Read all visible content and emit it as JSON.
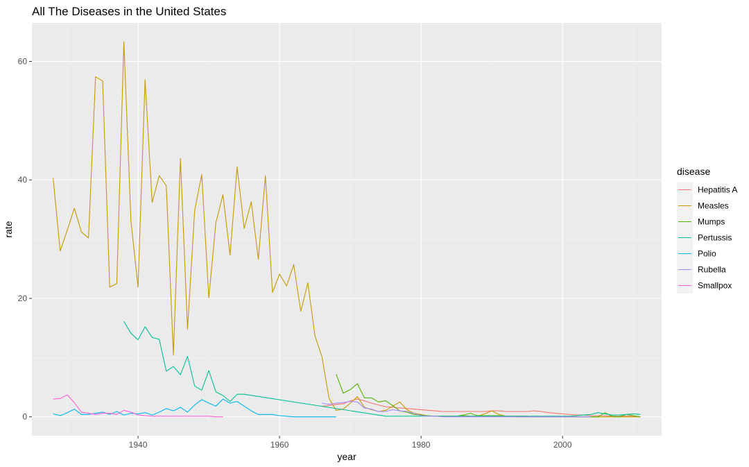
{
  "chart_data": {
    "type": "line",
    "title": "All The Diseases in the United States",
    "xlabel": "year",
    "ylabel": "rate",
    "xlim": [
      1925,
      2014
    ],
    "ylim": [
      -3.2,
      66.5
    ],
    "x_ticks": [
      1940,
      1960,
      1980,
      2000
    ],
    "y_ticks": [
      0,
      20,
      40,
      60
    ],
    "grid": true,
    "legend": {
      "title": "disease",
      "position": "right"
    },
    "series": [
      {
        "name": "Hepatitis A",
        "color": "#F8766D",
        "x": [
          1966,
          1967,
          1968,
          1969,
          1970,
          1971,
          1972,
          1973,
          1974,
          1975,
          1976,
          1977,
          1978,
          1979,
          1980,
          1981,
          1982,
          1983,
          1984,
          1985,
          1986,
          1987,
          1988,
          1989,
          1990,
          1991,
          1992,
          1993,
          1994,
          1995,
          1996,
          1997,
          1998,
          1999,
          2000,
          2001,
          2002,
          2003,
          2004,
          2005,
          2006,
          2007,
          2008,
          2009,
          2010,
          2011
        ],
        "y": [
          1.8,
          1.9,
          2.1,
          2.2,
          2.7,
          3.0,
          2.7,
          2.3,
          2.0,
          1.7,
          1.6,
          1.5,
          1.4,
          1.3,
          1.2,
          1.1,
          1.0,
          0.9,
          0.9,
          0.9,
          0.9,
          0.9,
          0.9,
          0.9,
          1.0,
          1.0,
          0.9,
          0.9,
          0.9,
          0.9,
          1.0,
          0.9,
          0.7,
          0.6,
          0.5,
          0.4,
          0.3,
          0.3,
          0.2,
          0.2,
          0.2,
          0.1,
          0.1,
          0.1,
          0.1,
          0.0
        ]
      },
      {
        "name": "Measles",
        "color": "#C49A00",
        "x": [
          1928,
          1929,
          1930,
          1931,
          1932,
          1933,
          1934,
          1935,
          1936,
          1937,
          1938,
          1939,
          1940,
          1941,
          1942,
          1943,
          1944,
          1945,
          1946,
          1947,
          1948,
          1949,
          1950,
          1951,
          1952,
          1953,
          1954,
          1955,
          1956,
          1957,
          1958,
          1959,
          1960,
          1961,
          1962,
          1963,
          1964,
          1965,
          1966,
          1967,
          1968,
          1969,
          1970,
          1971,
          1972,
          1973,
          1974,
          1975,
          1976,
          1977,
          1978,
          1979,
          1980,
          1981,
          1982,
          1983,
          1984,
          1985,
          1986,
          1987,
          1988,
          1989,
          1990,
          1991,
          1992,
          1993,
          1994,
          1995,
          1996,
          1997,
          1998,
          1999,
          2000,
          2001,
          2002,
          2003,
          2004,
          2005,
          2006,
          2007,
          2008,
          2009,
          2010,
          2011
        ],
        "y": [
          40.3,
          28.0,
          31.5,
          35.2,
          31.2,
          30.2,
          57.4,
          56.7,
          21.9,
          22.5,
          63.3,
          33.1,
          21.9,
          56.9,
          36.2,
          40.7,
          39.0,
          10.4,
          43.6,
          14.8,
          34.8,
          40.9,
          20.1,
          32.8,
          37.5,
          27.3,
          42.2,
          31.8,
          36.3,
          26.6,
          40.7,
          21.0,
          24.1,
          22.1,
          25.7,
          17.8,
          22.6,
          13.7,
          10.1,
          3.1,
          1.1,
          1.3,
          2.3,
          3.4,
          1.6,
          1.2,
          0.9,
          1.1,
          1.8,
          2.5,
          1.2,
          0.6,
          0.4,
          0.1,
          0.1,
          0.1,
          0.1,
          0.1,
          0.2,
          0.1,
          0.1,
          0.5,
          1.0,
          0.4,
          0.1,
          0.0,
          0.0,
          0.0,
          0.0,
          0.0,
          0.0,
          0.0,
          0.0,
          0.0,
          0.0,
          0.0,
          0.0,
          0.0,
          0.0,
          0.0,
          0.0,
          0.0,
          0.0,
          0.0
        ]
      },
      {
        "name": "Mumps",
        "color": "#53B400",
        "x": [
          1968,
          1969,
          1970,
          1971,
          1972,
          1973,
          1974,
          1975,
          1976,
          1977,
          1978,
          1979,
          1980,
          1981,
          1982,
          1983,
          1984,
          1985,
          1986,
          1987,
          1988,
          1989,
          1990,
          1991,
          1992,
          1993,
          1994,
          1995,
          1996,
          1997,
          1998,
          1999,
          2000,
          2001,
          2002,
          2003,
          2004,
          2005,
          2006,
          2007,
          2008,
          2009,
          2010,
          2011
        ],
        "y": [
          7.2,
          4.0,
          4.6,
          5.6,
          3.2,
          3.2,
          2.5,
          2.7,
          1.9,
          1.0,
          0.8,
          0.4,
          0.3,
          0.2,
          0.1,
          0.1,
          0.1,
          0.1,
          0.3,
          0.6,
          0.2,
          0.2,
          0.2,
          0.2,
          0.1,
          0.1,
          0.1,
          0.1,
          0.0,
          0.0,
          0.0,
          0.0,
          0.0,
          0.0,
          0.0,
          0.0,
          0.0,
          0.0,
          0.7,
          0.1,
          0.0,
          0.4,
          0.2,
          0.0
        ]
      },
      {
        "name": "Pertussis",
        "color": "#00C094",
        "x": [
          1938,
          1939,
          1940,
          1941,
          1942,
          1943,
          1944,
          1945,
          1946,
          1947,
          1948,
          1949,
          1950,
          1951,
          1952,
          1953,
          1954,
          1955,
          1975,
          1976,
          1977,
          1978,
          1979,
          1980,
          1981,
          1982,
          1983,
          1984,
          1985,
          1986,
          1987,
          1988,
          1989,
          1990,
          1991,
          1992,
          1993,
          1994,
          1995,
          1996,
          1997,
          1998,
          1999,
          2000,
          2001,
          2002,
          2003,
          2004,
          2005,
          2006,
          2007,
          2008,
          2009,
          2010,
          2011
        ],
        "y": [
          16.1,
          14.1,
          13.0,
          15.2,
          13.4,
          13.1,
          7.7,
          8.5,
          7.1,
          10.2,
          5.2,
          4.5,
          7.8,
          4.2,
          3.6,
          2.6,
          3.8,
          3.8,
          0.1,
          0.1,
          0.1,
          0.1,
          0.1,
          0.1,
          0.1,
          0.1,
          0.1,
          0.1,
          0.1,
          0.1,
          0.1,
          0.1,
          0.1,
          0.1,
          0.1,
          0.1,
          0.1,
          0.1,
          0.1,
          0.1,
          0.1,
          0.1,
          0.1,
          0.1,
          0.1,
          0.2,
          0.3,
          0.4,
          0.7,
          0.5,
          0.3,
          0.3,
          0.4,
          0.5,
          0.4
        ]
      },
      {
        "name": "Polio",
        "color": "#00B6EB",
        "x": [
          1928,
          1929,
          1930,
          1931,
          1932,
          1933,
          1934,
          1935,
          1936,
          1937,
          1938,
          1939,
          1940,
          1941,
          1942,
          1943,
          1944,
          1945,
          1946,
          1947,
          1948,
          1949,
          1950,
          1951,
          1952,
          1953,
          1954,
          1955,
          1956,
          1957,
          1958,
          1959,
          1960,
          1961,
          1962,
          1963,
          1964,
          1965,
          1966,
          1967,
          1968
        ],
        "y": [
          0.5,
          0.2,
          0.7,
          1.3,
          0.4,
          0.4,
          0.6,
          0.8,
          0.4,
          0.9,
          0.3,
          0.6,
          0.5,
          0.7,
          0.3,
          0.8,
          1.4,
          1.0,
          1.6,
          0.8,
          2.0,
          2.9,
          2.3,
          1.8,
          3.0,
          2.3,
          2.6,
          1.8,
          1.0,
          0.4,
          0.4,
          0.4,
          0.2,
          0.1,
          0.0,
          0.0,
          0.0,
          0.0,
          0.0,
          0.0,
          0.0
        ]
      },
      {
        "name": "Rubella",
        "color": "#A58AFF",
        "x": [
          1966,
          1967,
          1968,
          1969,
          1970,
          1971,
          1972,
          1973,
          1974,
          1975,
          1976,
          1977,
          1978,
          1979,
          1980,
          1981,
          1982,
          1983,
          1984,
          1985,
          1986,
          1987,
          1988,
          1989,
          1990,
          1991,
          1992,
          1993,
          1994,
          1995,
          1996,
          1997,
          1998,
          1999,
          2000,
          2001,
          2002,
          2003,
          2004
        ],
        "y": [
          2.3,
          2.1,
          2.3,
          2.4,
          2.6,
          2.5,
          1.5,
          1.3,
          0.9,
          0.9,
          1.2,
          1.0,
          0.9,
          0.6,
          0.2,
          0.1,
          0.1,
          0.0,
          0.0,
          0.0,
          0.0,
          0.0,
          0.0,
          0.0,
          0.0,
          0.0,
          0.0,
          0.0,
          0.0,
          0.0,
          0.0,
          0.0,
          0.0,
          0.0,
          0.0,
          0.0,
          0.0,
          0.0,
          0.0
        ]
      },
      {
        "name": "Smallpox",
        "color": "#FB61D7",
        "x": [
          1928,
          1929,
          1930,
          1931,
          1932,
          1933,
          1934,
          1935,
          1936,
          1937,
          1938,
          1939,
          1940,
          1941,
          1942,
          1943,
          1944,
          1945,
          1946,
          1947,
          1948,
          1949,
          1950,
          1951,
          1952
        ],
        "y": [
          3.0,
          3.1,
          3.7,
          2.4,
          0.8,
          0.6,
          0.4,
          0.6,
          0.6,
          0.4,
          1.1,
          0.8,
          0.3,
          0.2,
          0.1,
          0.1,
          0.1,
          0.1,
          0.1,
          0.1,
          0.1,
          0.1,
          0.1,
          0.0,
          0.0
        ]
      }
    ]
  }
}
